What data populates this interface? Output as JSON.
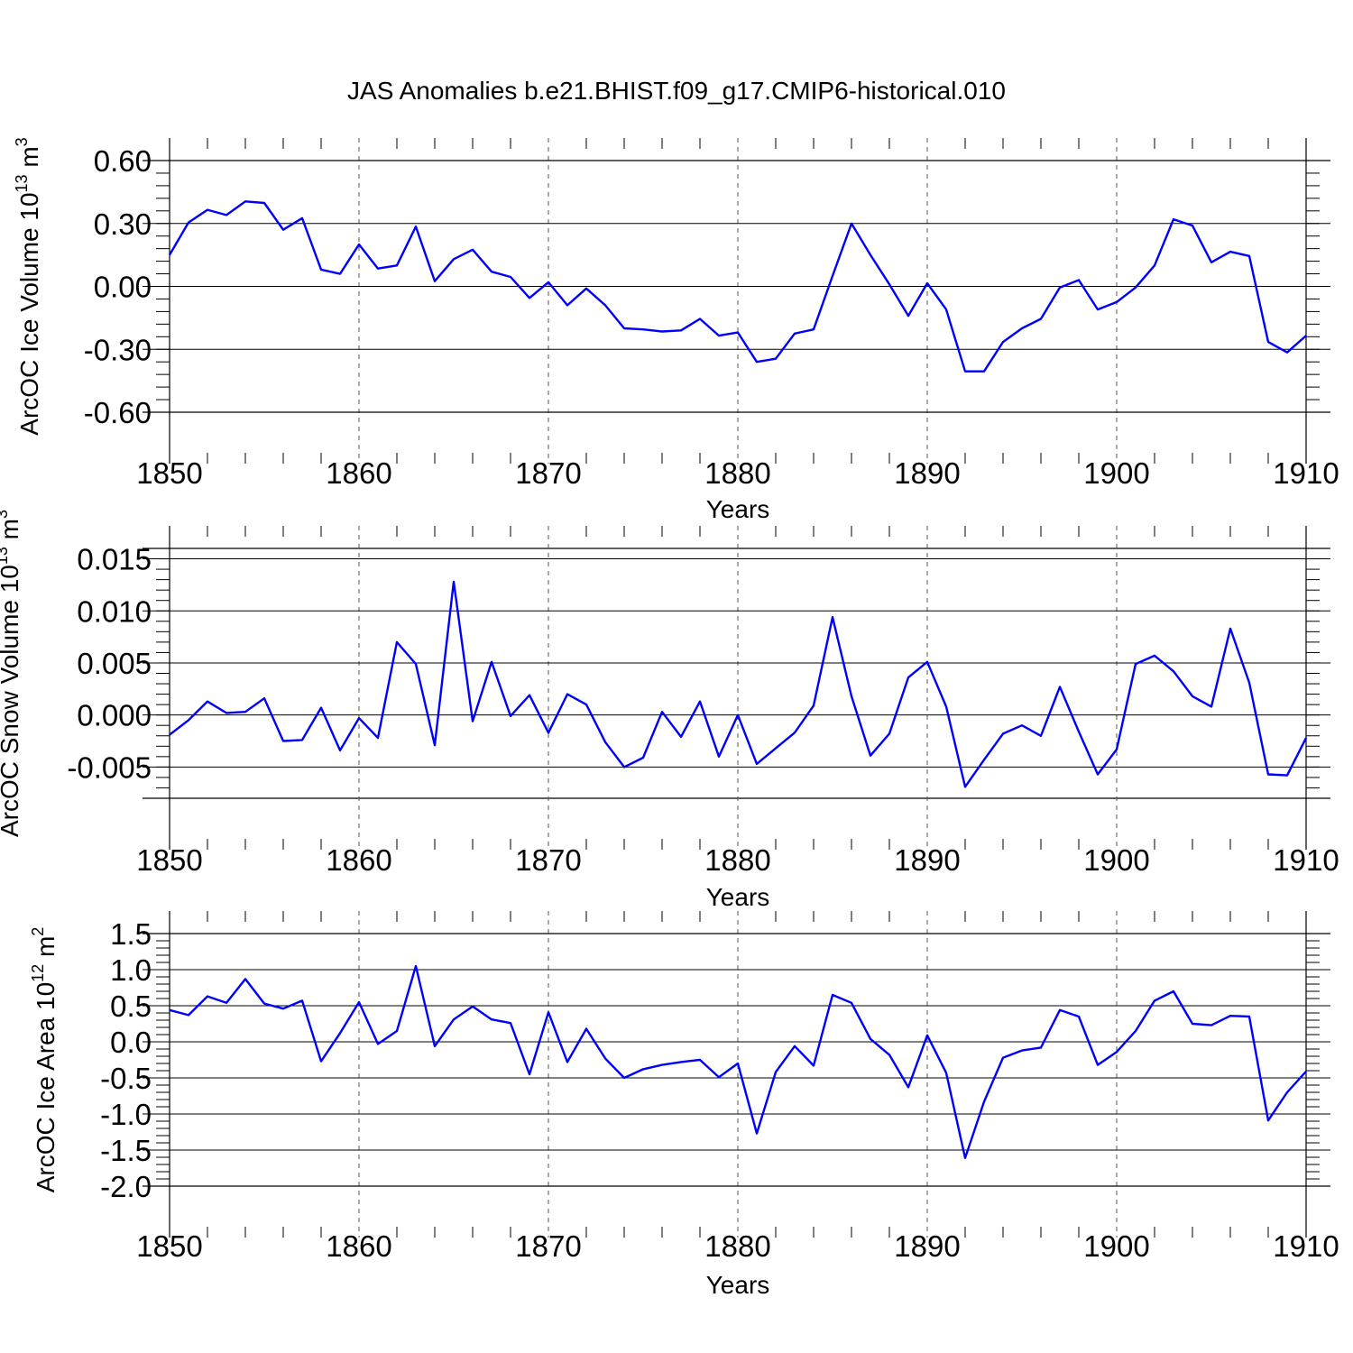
{
  "title": "JAS Anomalies b.e21.BHIST.f09_g17.CMIP6-historical.010",
  "colors": {
    "line": "#0000ff",
    "frame": "#000000",
    "grid": "#777777"
  },
  "chart_data": [
    {
      "type": "line",
      "ylabel_main": "ArcOC Ice Volume 10",
      "ylabel_exp": "13",
      "ylabel_unit": " m",
      "ylabel_unit_exp": "3",
      "xlabel": "Years",
      "xlim": [
        1850,
        1910
      ],
      "ylim": [
        -0.6,
        0.6
      ],
      "xticks": [
        "1850",
        "1860",
        "1870",
        "1880",
        "1890",
        "1900",
        "1910"
      ],
      "yticks": [
        {
          "v": 0.6,
          "label": "0.60"
        },
        {
          "v": 0.3,
          "label": "0.30"
        },
        {
          "v": 0.0,
          "label": "0.00"
        },
        {
          "v": -0.3,
          "label": "-0.30"
        },
        {
          "v": -0.6,
          "label": "-0.60"
        }
      ],
      "grid": "dashed vertical lines at decades",
      "x_start": 1850,
      "values": [
        0.15,
        0.305,
        0.365,
        0.34,
        0.405,
        0.398,
        0.27,
        0.325,
        0.08,
        0.06,
        0.2,
        0.085,
        0.1,
        0.285,
        0.025,
        0.13,
        0.175,
        0.07,
        0.045,
        -0.055,
        0.02,
        -0.09,
        -0.01,
        -0.09,
        -0.2,
        -0.205,
        -0.215,
        -0.21,
        -0.155,
        -0.235,
        -0.22,
        -0.36,
        -0.345,
        -0.225,
        -0.205,
        0.05,
        0.3,
        0.15,
        0.01,
        -0.14,
        0.015,
        -0.11,
        -0.405,
        -0.405,
        -0.265,
        -0.2,
        -0.155,
        -0.005,
        0.03,
        -0.11,
        -0.075,
        -0.005,
        0.1,
        0.32,
        0.29,
        0.115,
        0.165,
        0.145,
        -0.265,
        -0.315,
        -0.235
      ]
    },
    {
      "type": "line",
      "ylabel_main": "ArcOC Snow Volume 10",
      "ylabel_exp": "13",
      "ylabel_unit": " m",
      "ylabel_unit_exp": "3",
      "xlabel": "Years",
      "xlim": [
        1850,
        1910
      ],
      "ylim": [
        -0.008,
        0.016
      ],
      "xticks": [
        "1850",
        "1860",
        "1870",
        "1880",
        "1890",
        "1900",
        "1910"
      ],
      "yticks": [
        {
          "v": 0.015,
          "label": "0.015"
        },
        {
          "v": 0.01,
          "label": "0.010"
        },
        {
          "v": 0.005,
          "label": "0.005"
        },
        {
          "v": 0.0,
          "label": "0.000"
        },
        {
          "v": -0.005,
          "label": "-0.005"
        }
      ],
      "grid": "dashed vertical lines at decades",
      "x_start": 1850,
      "values": [
        -0.0019,
        -0.0005,
        0.0013,
        0.0002,
        0.0003,
        0.0016,
        -0.0025,
        -0.0024,
        0.0007,
        -0.0034,
        -0.0003,
        -0.0022,
        0.007,
        0.0049,
        -0.0029,
        0.0128,
        -0.0006,
        0.0051,
        -0.0001,
        0.0019,
        -0.0017,
        0.002,
        0.001,
        -0.0026,
        -0.005,
        -0.0041,
        0.0003,
        -0.0021,
        0.0013,
        -0.004,
        0.0,
        -0.0047,
        -0.0032,
        -0.0017,
        0.0009,
        0.0094,
        0.0018,
        -0.0039,
        -0.0018,
        0.0036,
        0.0051,
        0.0008,
        -0.0069,
        -0.0043,
        -0.0018,
        -0.001,
        -0.002,
        0.0027,
        -0.0016,
        -0.0057,
        -0.0033,
        0.0049,
        0.0057,
        0.0042,
        0.0018,
        0.0008,
        0.0083,
        0.0031,
        -0.0057,
        -0.0058,
        -0.0022
      ]
    },
    {
      "type": "line",
      "ylabel_main": "ArcOC Ice Area 10",
      "ylabel_exp": "12",
      "ylabel_unit": " m",
      "ylabel_unit_exp": "2",
      "xlabel": "Years",
      "xlim": [
        1850,
        1910
      ],
      "ylim": [
        -2.0,
        1.5
      ],
      "xticks": [
        "1850",
        "1860",
        "1870",
        "1880",
        "1890",
        "1900",
        "1910"
      ],
      "yticks": [
        {
          "v": 1.5,
          "label": "1.5"
        },
        {
          "v": 1.0,
          "label": "1.0"
        },
        {
          "v": 0.5,
          "label": "0.5"
        },
        {
          "v": 0.0,
          "label": "0.0"
        },
        {
          "v": -0.5,
          "label": "-0.5"
        },
        {
          "v": -1.0,
          "label": "-1.0"
        },
        {
          "v": -1.5,
          "label": "-1.5"
        },
        {
          "v": -2.0,
          "label": "-2.0"
        }
      ],
      "grid": "dashed vertical lines at decades",
      "x_start": 1850,
      "values": [
        0.44,
        0.37,
        0.63,
        0.54,
        0.87,
        0.53,
        0.46,
        0.57,
        -0.27,
        0.12,
        0.55,
        -0.03,
        0.15,
        1.05,
        -0.06,
        0.31,
        0.49,
        0.31,
        0.26,
        -0.45,
        0.41,
        -0.28,
        0.18,
        -0.23,
        -0.5,
        -0.38,
        -0.32,
        -0.28,
        -0.25,
        -0.49,
        -0.3,
        -1.27,
        -0.42,
        -0.06,
        -0.33,
        0.65,
        0.54,
        0.04,
        -0.18,
        -0.63,
        0.09,
        -0.43,
        -1.61,
        -0.83,
        -0.22,
        -0.12,
        -0.08,
        0.44,
        0.35,
        -0.32,
        -0.14,
        0.15,
        0.57,
        0.7,
        0.25,
        0.23,
        0.36,
        0.35,
        -1.09,
        -0.7,
        -0.41
      ]
    }
  ]
}
